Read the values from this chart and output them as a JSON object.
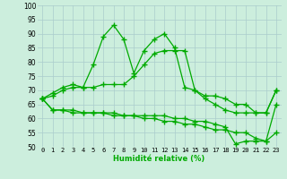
{
  "x": [
    0,
    1,
    2,
    3,
    4,
    5,
    6,
    7,
    8,
    9,
    10,
    11,
    12,
    13,
    14,
    15,
    16,
    17,
    18,
    19,
    20,
    21,
    22,
    23
  ],
  "line1": [
    67,
    69,
    71,
    72,
    71,
    79,
    89,
    93,
    88,
    76,
    84,
    88,
    90,
    85,
    71,
    70,
    67,
    65,
    63,
    62,
    62,
    62,
    62,
    70
  ],
  "line2": [
    67,
    68,
    70,
    71,
    71,
    71,
    72,
    72,
    72,
    75,
    79,
    83,
    84,
    84,
    84,
    70,
    68,
    68,
    67,
    65,
    65,
    62,
    62,
    70
  ],
  "line3": [
    67,
    63,
    63,
    63,
    62,
    62,
    62,
    62,
    61,
    61,
    61,
    61,
    61,
    60,
    60,
    59,
    59,
    58,
    57,
    51,
    52,
    52,
    52,
    55
  ],
  "line4": [
    67,
    63,
    63,
    62,
    62,
    62,
    62,
    61,
    61,
    61,
    60,
    60,
    59,
    59,
    58,
    58,
    57,
    56,
    56,
    55,
    55,
    53,
    52,
    65
  ],
  "ylim": [
    50,
    100
  ],
  "yticks": [
    50,
    55,
    60,
    65,
    70,
    75,
    80,
    85,
    90,
    95,
    100
  ],
  "xlabel": "Humidité relative (%)",
  "line_color": "#00aa00",
  "bg_color": "#cceedd",
  "grid_color": "#aacccc"
}
